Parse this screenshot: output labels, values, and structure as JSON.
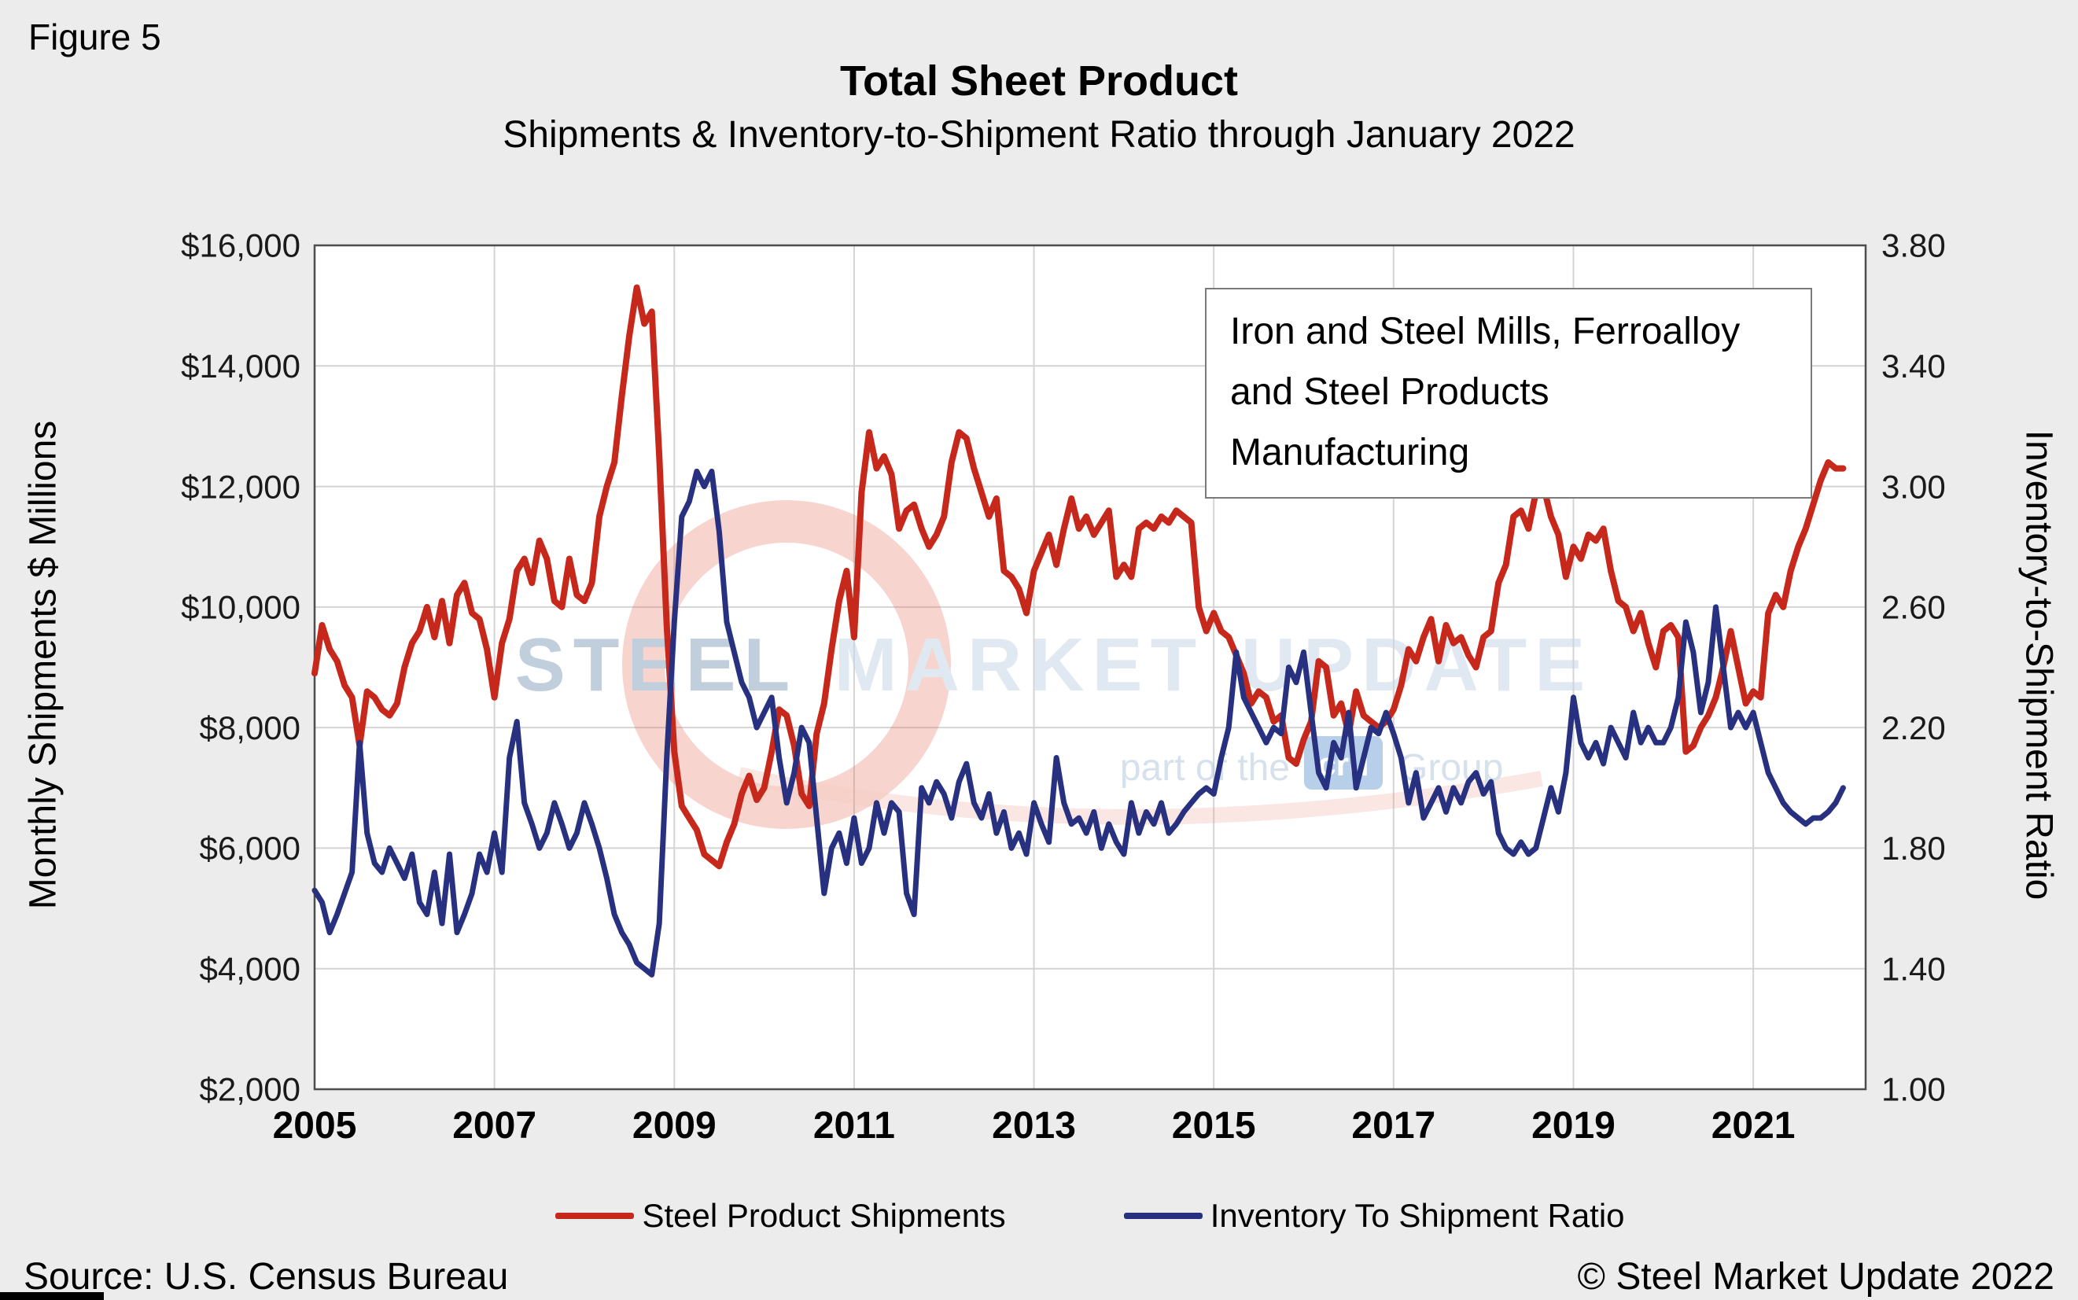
{
  "figure_label": "Figure 5",
  "header": {
    "title": "Total Sheet Product",
    "subtitle": "Shipments & Inventory-to-Shipment Ratio through January 2022"
  },
  "annotation": {
    "line1": "Iron and Steel Mills, Ferroalloy",
    "line2": "and Steel Products Manufacturing"
  },
  "axes": {
    "left_title": "Monthly Shipments $ Millions",
    "right_title": "Inventory-to-Shipment Ratio"
  },
  "legend": [
    {
      "label": "Steel Product Shipments",
      "color": "#c6281c"
    },
    {
      "label": "Inventory To Shipment Ratio",
      "color": "#283180"
    }
  ],
  "footer": {
    "source": "Source: U.S. Census Bureau",
    "copyright": "© Steel Market Update 2022"
  },
  "watermark": {
    "word1": "STEEL",
    "word2": "MARKET",
    "word3": "UPDATE",
    "tagline_prefix": "part of the",
    "tagline_badge": "cru",
    "tagline_suffix": "Group"
  },
  "chart_data": {
    "type": "line",
    "title": "Total Sheet Product",
    "subtitle": "Shipments & Inventory-to-Shipment Ratio through January 2022",
    "frequency": "monthly",
    "start_year": 2005,
    "start_month": 1,
    "end_label": "January 2022",
    "grid": true,
    "legend_position": "bottom",
    "x_axis": {
      "min": 2005.0,
      "max": 2022.25,
      "tick_years": [
        2005,
        2007,
        2009,
        2011,
        2013,
        2015,
        2017,
        2019,
        2021
      ]
    },
    "y_left": {
      "label": "Monthly Shipments $ Millions",
      "min": 2000,
      "max": 16000,
      "ticks": [
        2000,
        4000,
        6000,
        8000,
        10000,
        12000,
        14000,
        16000
      ],
      "tick_labels": [
        "$2,000",
        "$4,000",
        "$6,000",
        "$8,000",
        "$10,000",
        "$12,000",
        "$14,000",
        "$16,000"
      ]
    },
    "y_right": {
      "label": "Inventory-to-Shipment Ratio",
      "min": 1.0,
      "max": 3.8,
      "ticks": [
        1.0,
        1.4,
        1.8,
        2.2,
        2.6,
        3.0,
        3.4,
        3.8
      ],
      "tick_labels": [
        "1.00",
        "1.40",
        "1.80",
        "2.20",
        "2.60",
        "3.00",
        "3.40",
        "3.80"
      ]
    },
    "series": [
      {
        "name": "Steel Product Shipments",
        "axis": "left",
        "color": "#c6281c",
        "values": [
          8900,
          9700,
          9300,
          9100,
          8700,
          8500,
          7700,
          8600,
          8500,
          8300,
          8200,
          8400,
          9000,
          9400,
          9600,
          10000,
          9500,
          10100,
          9400,
          10200,
          10400,
          9900,
          9800,
          9300,
          8500,
          9400,
          9800,
          10600,
          10800,
          10400,
          11100,
          10800,
          10100,
          10000,
          10800,
          10200,
          10100,
          10400,
          11500,
          12000,
          12400,
          13500,
          14500,
          15300,
          14700,
          14900,
          12500,
          9700,
          7600,
          6700,
          6500,
          6300,
          5900,
          5800,
          5700,
          6100,
          6400,
          6900,
          7200,
          6800,
          7000,
          7600,
          8300,
          8200,
          7700,
          6900,
          6700,
          7900,
          8400,
          9300,
          10100,
          10600,
          9500,
          11900,
          12900,
          12300,
          12500,
          12200,
          11300,
          11600,
          11700,
          11300,
          11000,
          11200,
          11500,
          12400,
          12900,
          12800,
          12300,
          11900,
          11500,
          11800,
          10600,
          10500,
          10300,
          9900,
          10600,
          10900,
          11200,
          10700,
          11300,
          11800,
          11300,
          11500,
          11200,
          11400,
          11600,
          10500,
          10700,
          10500,
          11300,
          11400,
          11300,
          11500,
          11400,
          11600,
          11500,
          11400,
          10000,
          9600,
          9900,
          9600,
          9500,
          9200,
          8900,
          8400,
          8600,
          8500,
          8100,
          8200,
          7500,
          7400,
          7800,
          8100,
          9100,
          9000,
          8200,
          8400,
          7900,
          8600,
          8200,
          8100,
          8000,
          8100,
          8300,
          8700,
          9300,
          9100,
          9500,
          9800,
          9100,
          9700,
          9400,
          9500,
          9200,
          9000,
          9500,
          9600,
          10400,
          10700,
          11500,
          11600,
          11300,
          11900,
          12000,
          11500,
          11200,
          10500,
          11000,
          10800,
          11200,
          11100,
          11300,
          10600,
          10100,
          10000,
          9600,
          9900,
          9400,
          9000,
          9600,
          9700,
          9500,
          7600,
          7700,
          8000,
          8200,
          8500,
          9000,
          9600,
          9000,
          8400,
          8600,
          8500,
          9900,
          10200,
          10000,
          10600,
          11000,
          11300,
          11700,
          12100,
          12400,
          12300,
          12300
        ]
      },
      {
        "name": "Inventory To Shipment Ratio",
        "axis": "right",
        "color": "#283180",
        "values": [
          1.66,
          1.62,
          1.52,
          1.58,
          1.65,
          1.72,
          2.15,
          1.85,
          1.75,
          1.72,
          1.8,
          1.75,
          1.7,
          1.78,
          1.62,
          1.58,
          1.72,
          1.55,
          1.78,
          1.52,
          1.58,
          1.65,
          1.78,
          1.72,
          1.85,
          1.72,
          2.1,
          2.22,
          1.95,
          1.88,
          1.8,
          1.85,
          1.95,
          1.88,
          1.8,
          1.85,
          1.95,
          1.88,
          1.8,
          1.7,
          1.58,
          1.52,
          1.48,
          1.42,
          1.4,
          1.38,
          1.55,
          2.1,
          2.55,
          2.9,
          2.95,
          3.05,
          3.0,
          3.05,
          2.85,
          2.55,
          2.45,
          2.35,
          2.3,
          2.2,
          2.25,
          2.3,
          2.1,
          1.95,
          2.05,
          2.2,
          2.15,
          1.9,
          1.65,
          1.8,
          1.85,
          1.75,
          1.9,
          1.75,
          1.8,
          1.95,
          1.85,
          1.95,
          1.92,
          1.65,
          1.58,
          2.0,
          1.95,
          2.02,
          1.98,
          1.9,
          2.02,
          2.08,
          1.95,
          1.9,
          1.98,
          1.85,
          1.92,
          1.8,
          1.85,
          1.78,
          1.95,
          1.88,
          1.82,
          2.1,
          1.95,
          1.88,
          1.9,
          1.85,
          1.92,
          1.8,
          1.88,
          1.82,
          1.78,
          1.95,
          1.85,
          1.92,
          1.88,
          1.95,
          1.85,
          1.88,
          1.92,
          1.95,
          1.98,
          2.0,
          1.98,
          2.1,
          2.2,
          2.45,
          2.3,
          2.25,
          2.2,
          2.15,
          2.2,
          2.18,
          2.4,
          2.35,
          2.45,
          2.25,
          2.05,
          2.0,
          2.15,
          2.1,
          2.25,
          2.0,
          2.1,
          2.2,
          2.18,
          2.25,
          2.18,
          2.1,
          1.95,
          2.05,
          1.9,
          1.95,
          2.0,
          1.92,
          2.0,
          1.95,
          2.02,
          2.05,
          1.98,
          2.02,
          1.85,
          1.8,
          1.78,
          1.82,
          1.78,
          1.8,
          1.9,
          2.0,
          1.92,
          2.05,
          2.3,
          2.15,
          2.1,
          2.15,
          2.08,
          2.2,
          2.15,
          2.1,
          2.25,
          2.15,
          2.2,
          2.15,
          2.15,
          2.2,
          2.3,
          2.55,
          2.45,
          2.25,
          2.35,
          2.6,
          2.4,
          2.2,
          2.25,
          2.2,
          2.25,
          2.15,
          2.05,
          2.0,
          1.95,
          1.92,
          1.9,
          1.88,
          1.9,
          1.9,
          1.92,
          1.95,
          2.0
        ]
      }
    ]
  }
}
